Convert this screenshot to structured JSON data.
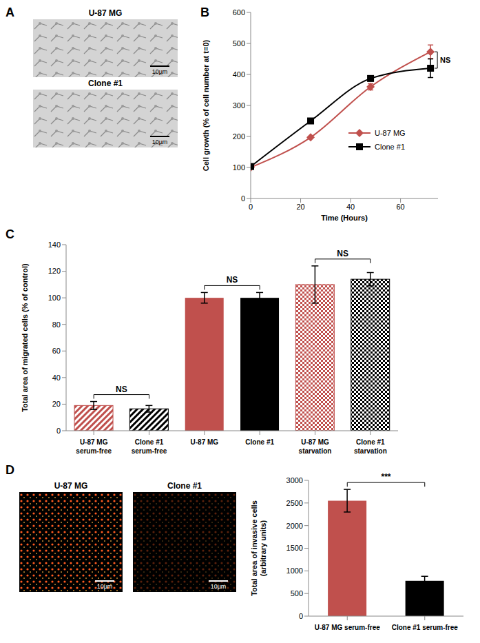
{
  "images": [
    {
      "panel": "A",
      "labels": [
        "U-87 MG",
        "Clone #1"
      ],
      "scale_bar": "10µm"
    },
    {
      "panel": "D",
      "labels": [
        "U-87 MG",
        "Clone #1"
      ],
      "scale_bar": "10µm"
    }
  ],
  "chart_data": [
    {
      "panel": "B",
      "type": "line",
      "x_label": "Time (Hours)",
      "y_label": "Cell growth (% of cell number at t=0)",
      "x": [
        0,
        24,
        48,
        72
      ],
      "xlim": [
        0,
        75
      ],
      "xticks": [
        0,
        20,
        40,
        60
      ],
      "ylim": [
        0,
        600
      ],
      "yticks": [
        0,
        100,
        200,
        300,
        400,
        500,
        600
      ],
      "grid": false,
      "legend": "right",
      "annotations": [
        "NS"
      ],
      "series": [
        {
          "name": "U-87 MG",
          "color": "#c0504d",
          "marker": "diamond",
          "values": [
            100,
            197,
            360,
            473
          ],
          "errors": [
            0,
            0,
            10,
            22
          ]
        },
        {
          "name": "Clone #1",
          "color": "#000000",
          "marker": "square",
          "values": [
            103,
            250,
            387,
            420
          ],
          "errors": [
            0,
            0,
            8,
            30
          ]
        }
      ]
    },
    {
      "panel": "C",
      "type": "bar",
      "y_label": "Total area of migrated cells (% of control)",
      "categories": [
        "U-87 MG serum-free",
        "Clone #1 serum-free",
        "U-87 MG",
        "Clone #1",
        "U-87 MG starvation",
        "Clone #1 starvation"
      ],
      "values": [
        19,
        16.5,
        100,
        100,
        110,
        114
      ],
      "errors": [
        3,
        2.5,
        4,
        4,
        14,
        5
      ],
      "colors": [
        "#c0504d",
        "#000000",
        "#c0504d",
        "#000000",
        "#c0504d",
        "#000000"
      ],
      "ylim": [
        0,
        140
      ],
      "yticks": [
        0,
        20,
        40,
        60,
        80,
        100,
        120,
        140
      ],
      "grid": false,
      "annotations": [
        "NS",
        "NS",
        "NS"
      ]
    },
    {
      "panel": "D",
      "type": "bar",
      "y_label": "Total area of invasive cells (arbitrary units)",
      "categories": [
        "U-87 MG serum-free",
        "Clone #1 serum-free"
      ],
      "values": [
        2550,
        780
      ],
      "errors": [
        250,
        100
      ],
      "colors": [
        "#c0504d",
        "#000000"
      ],
      "ylim": [
        0,
        3000
      ],
      "yticks": [
        0,
        500,
        1000,
        1500,
        2000,
        2500,
        3000
      ],
      "grid": false,
      "annotations": [
        "***"
      ]
    }
  ]
}
